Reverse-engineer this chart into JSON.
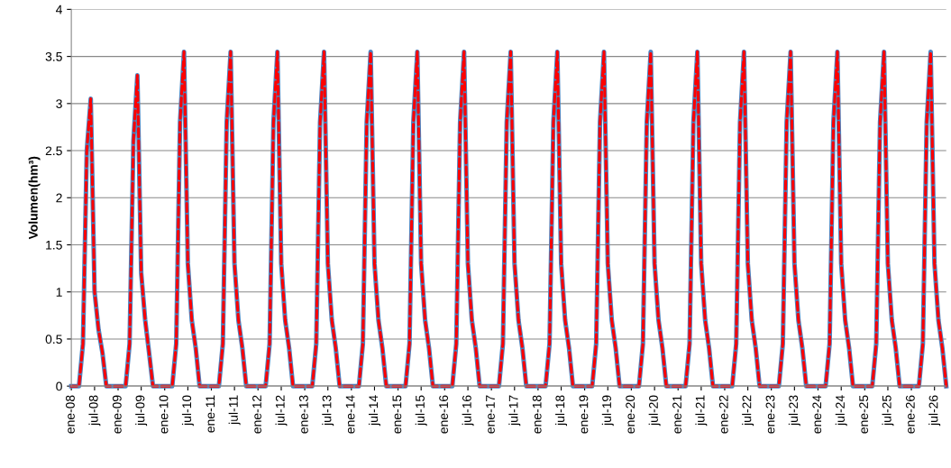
{
  "chart_data": {
    "type": "line",
    "ylabel": "Volumen(hm³)",
    "ylim": [
      0,
      4
    ],
    "yticks": [
      0,
      0.5,
      1,
      1.5,
      2,
      2.5,
      3,
      3.5,
      4
    ],
    "grid": "y",
    "marker": "none",
    "xlim": [
      "2008-01",
      "2026-10"
    ],
    "xticks": [
      {
        "value": "2008-01",
        "label": "ene-08"
      },
      {
        "value": "2008-07",
        "label": "jul-08"
      },
      {
        "value": "2009-01",
        "label": "ene-09"
      },
      {
        "value": "2009-07",
        "label": "jul-09"
      },
      {
        "value": "2010-01",
        "label": "ene-10"
      },
      {
        "value": "2010-07",
        "label": "jul-10"
      },
      {
        "value": "2011-01",
        "label": "ene-11"
      },
      {
        "value": "2011-07",
        "label": "jul-11"
      },
      {
        "value": "2012-01",
        "label": "ene-12"
      },
      {
        "value": "2012-07",
        "label": "jul-12"
      },
      {
        "value": "2013-01",
        "label": "ene-13"
      },
      {
        "value": "2013-07",
        "label": "jul-13"
      },
      {
        "value": "2014-01",
        "label": "ene-14"
      },
      {
        "value": "2014-07",
        "label": "jul-14"
      },
      {
        "value": "2015-01",
        "label": "ene-15"
      },
      {
        "value": "2015-07",
        "label": "jul-15"
      },
      {
        "value": "2016-01",
        "label": "ene-16"
      },
      {
        "value": "2016-07",
        "label": "jul-16"
      },
      {
        "value": "2017-01",
        "label": "ene-17"
      },
      {
        "value": "2017-07",
        "label": "jul-17"
      },
      {
        "value": "2018-01",
        "label": "ene-18"
      },
      {
        "value": "2018-07",
        "label": "jul-18"
      },
      {
        "value": "2019-01",
        "label": "ene-19"
      },
      {
        "value": "2019-07",
        "label": "jul-19"
      },
      {
        "value": "2020-01",
        "label": "ene-20"
      },
      {
        "value": "2020-07",
        "label": "jul-20"
      },
      {
        "value": "2021-01",
        "label": "ene-21"
      },
      {
        "value": "2021-07",
        "label": "jul-21"
      },
      {
        "value": "2022-01",
        "label": "ene-22"
      },
      {
        "value": "2022-07",
        "label": "jul-22"
      },
      {
        "value": "2023-01",
        "label": "ene-23"
      },
      {
        "value": "2023-07",
        "label": "jul-23"
      },
      {
        "value": "2024-01",
        "label": "ene-24"
      },
      {
        "value": "2024-07",
        "label": "jul-24"
      },
      {
        "value": "2025-01",
        "label": "ene-25"
      },
      {
        "value": "2025-07",
        "label": "jul-25"
      },
      {
        "value": "2026-01",
        "label": "ene-26"
      },
      {
        "value": "2026-07",
        "label": "jul-26"
      }
    ],
    "x": [
      "2008-01",
      "2008-02",
      "2008-03",
      "2008-04",
      "2008-05",
      "2008-06",
      "2008-07",
      "2008-08",
      "2008-09",
      "2008-10",
      "2008-11",
      "2008-12",
      "2009-01",
      "2009-02",
      "2009-03",
      "2009-04",
      "2009-05",
      "2009-06",
      "2009-07",
      "2009-08",
      "2009-09",
      "2009-10",
      "2009-11",
      "2009-12",
      "2010-01",
      "2010-02",
      "2010-03",
      "2010-04",
      "2010-05",
      "2010-06",
      "2010-07",
      "2010-08",
      "2010-09",
      "2010-10",
      "2010-11",
      "2010-12",
      "2011-01",
      "2011-02",
      "2011-03",
      "2011-04",
      "2011-05",
      "2011-06",
      "2011-07",
      "2011-08",
      "2011-09",
      "2011-10",
      "2011-11",
      "2011-12",
      "2012-01",
      "2012-02",
      "2012-03",
      "2012-04",
      "2012-05",
      "2012-06",
      "2012-07",
      "2012-08",
      "2012-09",
      "2012-10",
      "2012-11",
      "2012-12",
      "2013-01",
      "2013-02",
      "2013-03",
      "2013-04",
      "2013-05",
      "2013-06",
      "2013-07",
      "2013-08",
      "2013-09",
      "2013-10",
      "2013-11",
      "2013-12",
      "2014-01",
      "2014-02",
      "2014-03",
      "2014-04",
      "2014-05",
      "2014-06",
      "2014-07",
      "2014-08",
      "2014-09",
      "2014-10",
      "2014-11",
      "2014-12",
      "2015-01",
      "2015-02",
      "2015-03",
      "2015-04",
      "2015-05",
      "2015-06",
      "2015-07",
      "2015-08",
      "2015-09",
      "2015-10",
      "2015-11",
      "2015-12",
      "2016-01",
      "2016-02",
      "2016-03",
      "2016-04",
      "2016-05",
      "2016-06",
      "2016-07",
      "2016-08",
      "2016-09",
      "2016-10",
      "2016-11",
      "2016-12",
      "2017-01",
      "2017-02",
      "2017-03",
      "2017-04",
      "2017-05",
      "2017-06",
      "2017-07",
      "2017-08",
      "2017-09",
      "2017-10",
      "2017-11",
      "2017-12",
      "2018-01",
      "2018-02",
      "2018-03",
      "2018-04",
      "2018-05",
      "2018-06",
      "2018-07",
      "2018-08",
      "2018-09",
      "2018-10",
      "2018-11",
      "2018-12",
      "2019-01",
      "2019-02",
      "2019-03",
      "2019-04",
      "2019-05",
      "2019-06",
      "2019-07",
      "2019-08",
      "2019-09",
      "2019-10",
      "2019-11",
      "2019-12",
      "2020-01",
      "2020-02",
      "2020-03",
      "2020-04",
      "2020-05",
      "2020-06",
      "2020-07",
      "2020-08",
      "2020-09",
      "2020-10",
      "2020-11",
      "2020-12",
      "2021-01",
      "2021-02",
      "2021-03",
      "2021-04",
      "2021-05",
      "2021-06",
      "2021-07",
      "2021-08",
      "2021-09",
      "2021-10",
      "2021-11",
      "2021-12",
      "2022-01",
      "2022-02",
      "2022-03",
      "2022-04",
      "2022-05",
      "2022-06",
      "2022-07",
      "2022-08",
      "2022-09",
      "2022-10",
      "2022-11",
      "2022-12",
      "2023-01",
      "2023-02",
      "2023-03",
      "2023-04",
      "2023-05",
      "2023-06",
      "2023-07",
      "2023-08",
      "2023-09",
      "2023-10",
      "2023-11",
      "2023-12",
      "2024-01",
      "2024-02",
      "2024-03",
      "2024-04",
      "2024-05",
      "2024-06",
      "2024-07",
      "2024-08",
      "2024-09",
      "2024-10",
      "2024-11",
      "2024-12",
      "2025-01",
      "2025-02",
      "2025-03",
      "2025-04",
      "2025-05",
      "2025-06",
      "2025-07",
      "2025-08",
      "2025-09",
      "2025-10",
      "2025-11",
      "2025-12",
      "2026-01",
      "2026-02",
      "2026-03",
      "2026-04",
      "2026-05",
      "2026-06",
      "2026-07",
      "2026-08",
      "2026-09",
      "2026-10"
    ],
    "series": [
      {
        "color": "#4f81bd",
        "line_style": "solid",
        "values": [
          0,
          0,
          0,
          0.45,
          2.5,
          3.05,
          1.0,
          0.6,
          0.35,
          0,
          0,
          0,
          0,
          0,
          0,
          0.45,
          2.6,
          3.3,
          1.2,
          0.7,
          0.35,
          0,
          0,
          0,
          0,
          0,
          0,
          0.45,
          2.8,
          3.55,
          1.3,
          0.7,
          0.4,
          0,
          0,
          0,
          0,
          0,
          0,
          0.45,
          2.8,
          3.55,
          1.3,
          0.7,
          0.4,
          0,
          0,
          0,
          0,
          0,
          0,
          0.45,
          2.8,
          3.55,
          1.3,
          0.7,
          0.4,
          0,
          0,
          0,
          0,
          0,
          0,
          0.45,
          2.8,
          3.55,
          1.3,
          0.7,
          0.4,
          0,
          0,
          0,
          0,
          0,
          0,
          0.45,
          2.8,
          3.55,
          1.3,
          0.7,
          0.4,
          0,
          0,
          0,
          0,
          0,
          0,
          0.45,
          2.8,
          3.55,
          1.3,
          0.7,
          0.4,
          0,
          0,
          0,
          0,
          0,
          0,
          0.45,
          2.8,
          3.55,
          1.3,
          0.7,
          0.4,
          0,
          0,
          0,
          0,
          0,
          0,
          0.45,
          2.8,
          3.55,
          1.3,
          0.7,
          0.4,
          0,
          0,
          0,
          0,
          0,
          0,
          0.45,
          2.8,
          3.55,
          1.3,
          0.7,
          0.4,
          0,
          0,
          0,
          0,
          0,
          0,
          0.45,
          2.8,
          3.55,
          1.3,
          0.7,
          0.4,
          0,
          0,
          0,
          0,
          0,
          0,
          0.45,
          2.8,
          3.55,
          1.3,
          0.7,
          0.4,
          0,
          0,
          0,
          0,
          0,
          0,
          0.45,
          2.8,
          3.55,
          1.3,
          0.7,
          0.4,
          0,
          0,
          0,
          0,
          0,
          0,
          0.45,
          2.8,
          3.55,
          1.3,
          0.7,
          0.4,
          0,
          0,
          0,
          0,
          0,
          0,
          0.45,
          2.8,
          3.55,
          1.3,
          0.7,
          0.4,
          0,
          0,
          0,
          0,
          0,
          0,
          0.45,
          2.8,
          3.55,
          1.3,
          0.7,
          0.4,
          0,
          0,
          0,
          0,
          0,
          0,
          0.45,
          2.8,
          3.55,
          1.3,
          0.7,
          0.4,
          0,
          0,
          0,
          0,
          0,
          0,
          0.45,
          2.8,
          3.55,
          1.3,
          0.7,
          0.4,
          0
        ]
      },
      {
        "color": "#ff0000",
        "line_style": "dashed",
        "values": [
          0,
          0,
          0,
          0.45,
          2.5,
          3.05,
          1.0,
          0.6,
          0.35,
          0,
          0,
          0,
          0,
          0,
          0,
          0.45,
          2.6,
          3.3,
          1.2,
          0.7,
          0.35,
          0,
          0,
          0,
          0,
          0,
          0,
          0.45,
          2.8,
          3.55,
          1.3,
          0.7,
          0.4,
          0,
          0,
          0,
          0,
          0,
          0,
          0.45,
          2.8,
          3.55,
          1.3,
          0.7,
          0.4,
          0,
          0,
          0,
          0,
          0,
          0,
          0.45,
          2.8,
          3.55,
          1.3,
          0.7,
          0.4,
          0,
          0,
          0,
          0,
          0,
          0,
          0.45,
          2.8,
          3.55,
          1.3,
          0.7,
          0.4,
          0,
          0,
          0,
          0,
          0,
          0,
          0.45,
          2.8,
          3.55,
          1.3,
          0.7,
          0.4,
          0,
          0,
          0,
          0,
          0,
          0,
          0.45,
          2.8,
          3.55,
          1.3,
          0.7,
          0.4,
          0,
          0,
          0,
          0,
          0,
          0,
          0.45,
          2.8,
          3.55,
          1.3,
          0.7,
          0.4,
          0,
          0,
          0,
          0,
          0,
          0,
          0.45,
          2.8,
          3.55,
          1.3,
          0.7,
          0.4,
          0,
          0,
          0,
          0,
          0,
          0,
          0.45,
          2.8,
          3.55,
          1.3,
          0.7,
          0.4,
          0,
          0,
          0,
          0,
          0,
          0,
          0.45,
          2.8,
          3.55,
          1.3,
          0.7,
          0.4,
          0,
          0,
          0,
          0,
          0,
          0,
          0.45,
          2.8,
          3.55,
          1.3,
          0.7,
          0.4,
          0,
          0,
          0,
          0,
          0,
          0,
          0.45,
          2.8,
          3.55,
          1.3,
          0.7,
          0.4,
          0,
          0,
          0,
          0,
          0,
          0,
          0.45,
          2.8,
          3.55,
          1.3,
          0.7,
          0.4,
          0,
          0,
          0,
          0,
          0,
          0,
          0.45,
          2.8,
          3.55,
          1.3,
          0.7,
          0.4,
          0,
          0,
          0,
          0,
          0,
          0,
          0.45,
          2.8,
          3.55,
          1.3,
          0.7,
          0.4,
          0,
          0,
          0,
          0,
          0,
          0,
          0.45,
          2.8,
          3.55,
          1.3,
          0.7,
          0.4,
          0,
          0,
          0,
          0,
          0,
          0,
          0.45,
          2.8,
          3.55,
          1.3,
          0.7,
          0.4,
          0
        ]
      }
    ]
  }
}
